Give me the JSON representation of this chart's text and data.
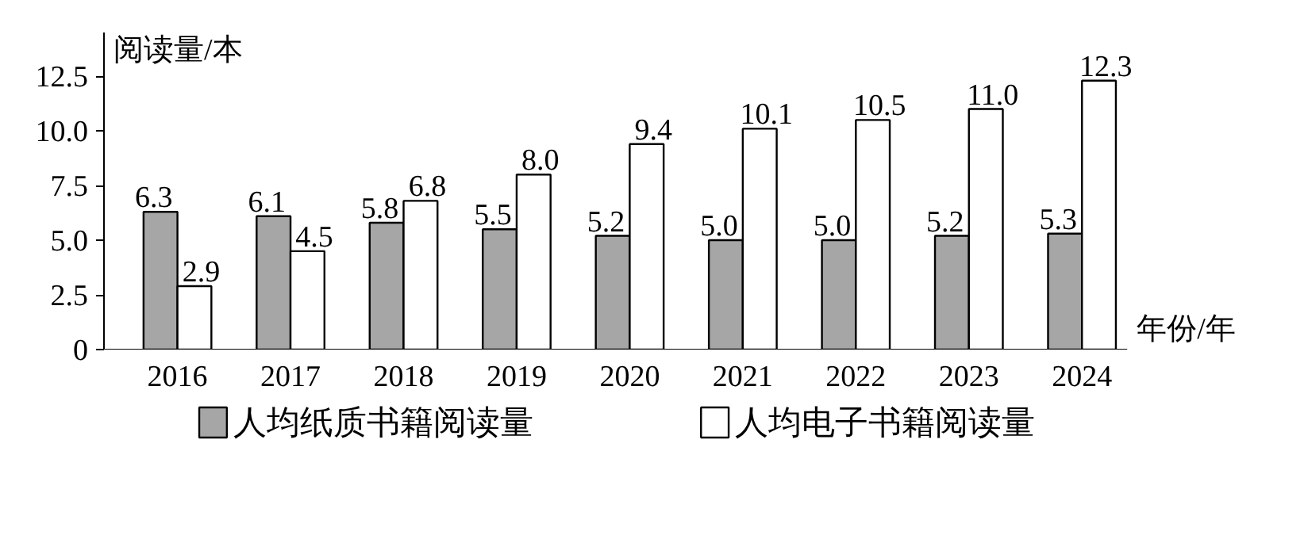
{
  "chart_data": {
    "type": "bar",
    "ylabel": "阅读量/本",
    "xlabel": "年份/年",
    "categories": [
      "2016",
      "2017",
      "2018",
      "2019",
      "2020",
      "2021",
      "2022",
      "2023",
      "2024"
    ],
    "series": [
      {
        "name": "人均纸质书籍阅读量",
        "color": "#a6a6a6",
        "values": [
          6.3,
          6.1,
          5.8,
          5.5,
          5.2,
          5.0,
          5.0,
          5.2,
          5.3
        ],
        "value_labels": [
          "6.3",
          "6.1",
          "5.8",
          "5.5",
          "5.2",
          "5.0",
          "5.0",
          "5.2",
          "5.3"
        ]
      },
      {
        "name": "人均电子书籍阅读量",
        "color": "#ffffff",
        "values": [
          2.9,
          4.5,
          6.8,
          8.0,
          9.4,
          10.1,
          10.5,
          11.0,
          12.3
        ],
        "value_labels": [
          "2.9",
          "4.5",
          "6.8",
          "8.0",
          "9.4",
          "10.1",
          "10.5",
          "11.0",
          "12.3"
        ]
      }
    ],
    "ylim": [
      0,
      14.5
    ],
    "yticks": [
      0,
      2.5,
      {
        "value": 5,
        "label": "5.0"
      },
      7.5,
      {
        "value": 10,
        "label": "10.0"
      },
      12.5
    ],
    "legend": "bottom",
    "grid": false
  }
}
